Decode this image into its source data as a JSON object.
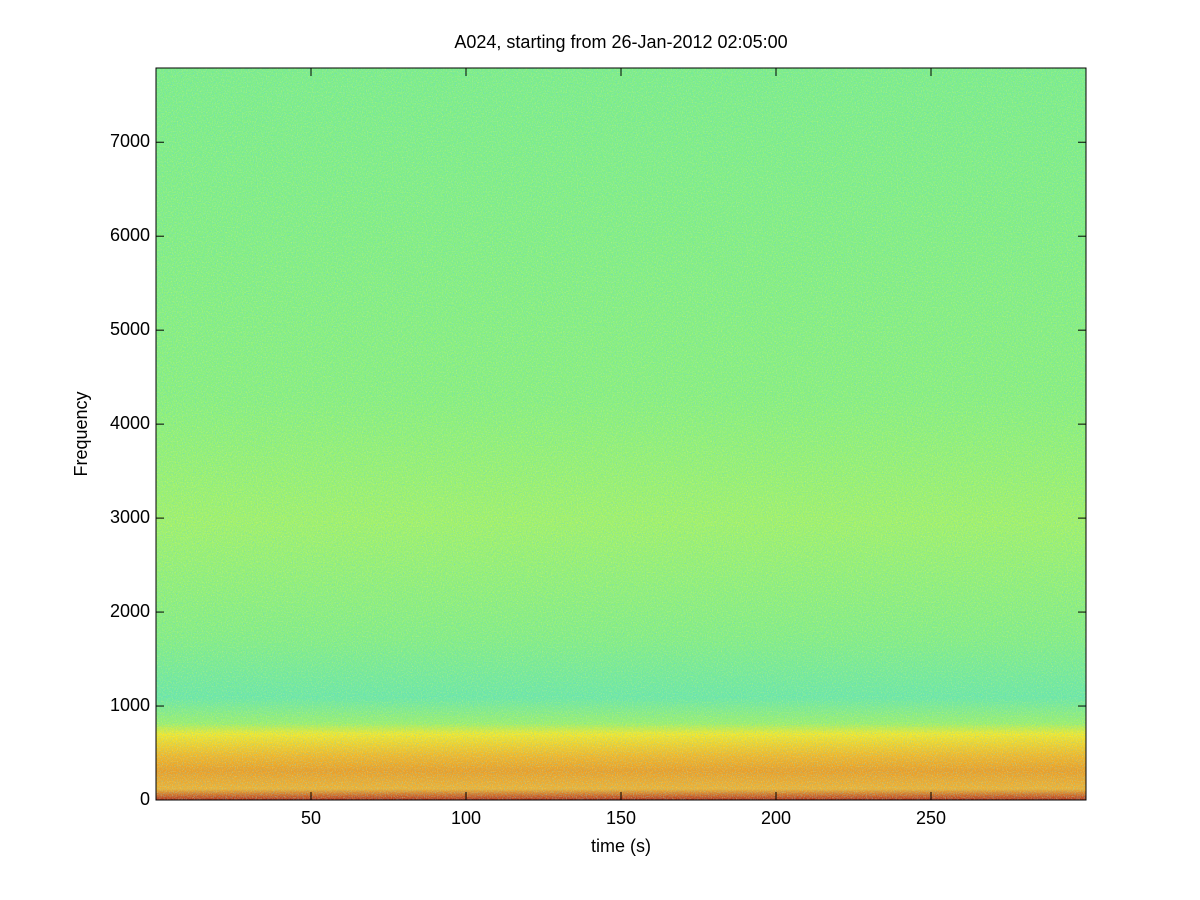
{
  "chart_data": {
    "type": "spectrogram",
    "title": "A024, starting from 26-Jan-2012 02:05:00",
    "x_label": "time (s)",
    "y_label": "Frequency",
    "xlim": [
      0,
      300
    ],
    "xticks": [
      50,
      100,
      150,
      200,
      250
    ],
    "ylim": [
      0,
      7790
    ],
    "yticks": [
      0,
      1000,
      2000,
      3000,
      4000,
      5000,
      6000,
      7000
    ]
  }
}
